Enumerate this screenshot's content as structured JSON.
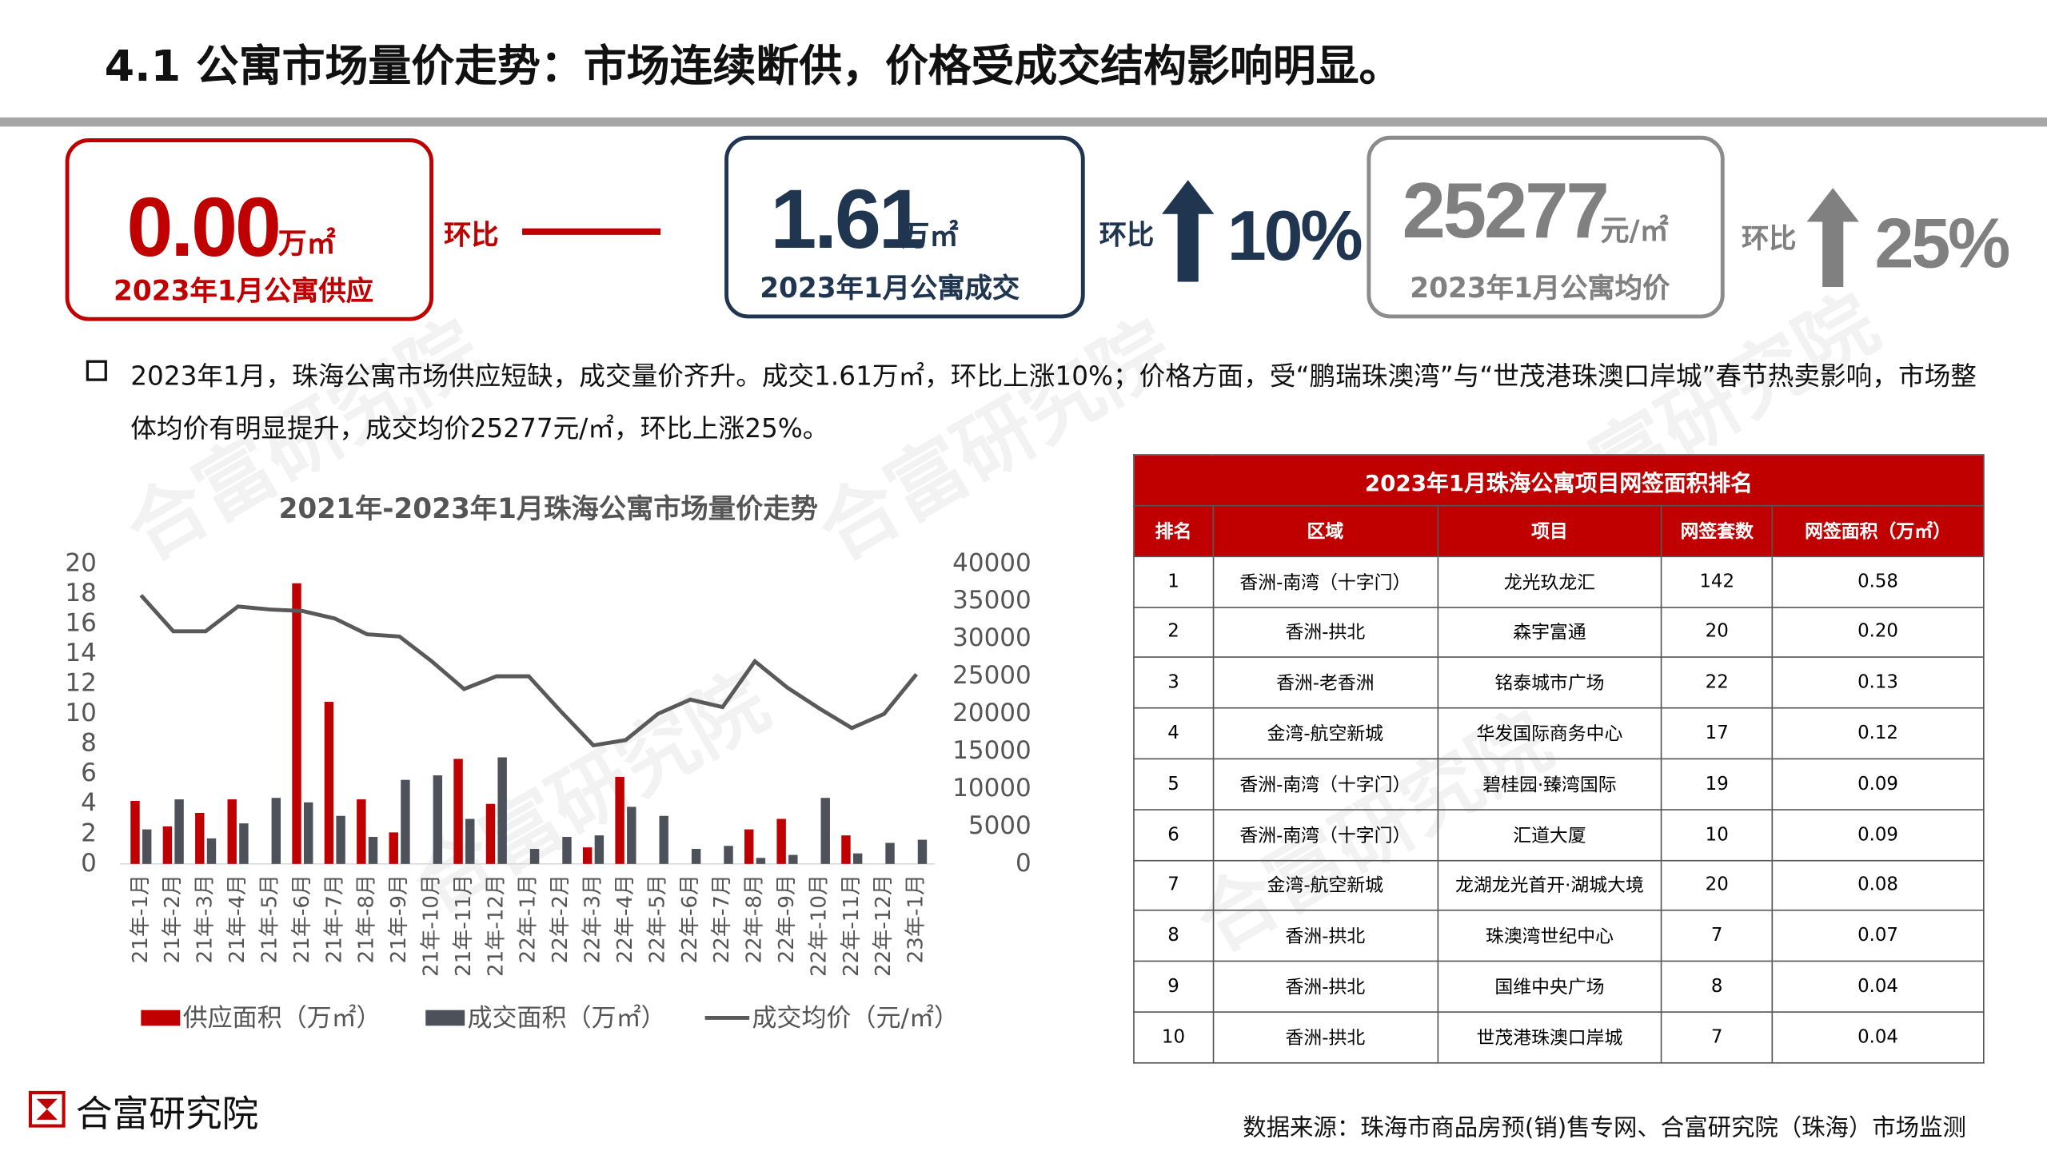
{
  "header": {
    "title": "4.1 公寓市场量价走势：市场连续断供，价格受成交结构影响明显。"
  },
  "kpis": [
    {
      "value": "0.00",
      "unit": "万㎡",
      "label": "2023年1月公寓供应",
      "change_label": "环比"
    },
    {
      "value": "1.61",
      "unit": "万㎡",
      "label": "2023年1月公寓成交",
      "change_label": "环比",
      "change": "10%"
    },
    {
      "value": "25277",
      "unit": "元/㎡",
      "label": "2023年1月公寓均价",
      "change_label": "环比",
      "change": "25%"
    }
  ],
  "summary": "2023年1月，珠海公寓市场供应短缺，成交量价齐升。成交1.61万㎡，环比上涨10%；价格方面，受“鹏瑞珠澳湾”与“世茂港珠澳口岸城”春节热卖影响，市场整体均价有明显提升，成交均价25277元/㎡，环比上涨25%。",
  "watermark": "合富研究院",
  "chart_data": {
    "type": "bar_line",
    "title": "2021年-2023年1月珠海公寓市场量价走势",
    "categories": [
      "21年-1月",
      "21年-2月",
      "21年-3月",
      "21年-4月",
      "21年-5月",
      "21年-6月",
      "21年-7月",
      "21年-8月",
      "21年-9月",
      "21年-10月",
      "21年-11月",
      "21年-12月",
      "22年-1月",
      "22年-2月",
      "22年-3月",
      "22年-4月",
      "22年-5月",
      "22年-6月",
      "22年-7月",
      "22年-8月",
      "22年-9月",
      "22年-10月",
      "22年-11月",
      "22年-12月",
      "23年-1月"
    ],
    "series": [
      {
        "name": "供应面积（万㎡）",
        "kind": "bar",
        "color": "#c00000",
        "values": [
          4.2,
          2.5,
          3.4,
          4.3,
          0,
          18.7,
          10.8,
          4.3,
          2.1,
          0,
          7.0,
          4.0,
          0,
          0,
          1.1,
          5.8,
          0,
          0,
          0,
          2.3,
          3.0,
          0,
          1.9,
          0,
          0
        ]
      },
      {
        "name": "成交面积（万㎡）",
        "kind": "bar",
        "color": "#4d5159",
        "values": [
          2.3,
          4.3,
          1.7,
          2.7,
          4.4,
          4.1,
          3.2,
          1.8,
          5.6,
          5.9,
          3.0,
          7.1,
          1.0,
          1.8,
          1.9,
          3.8,
          3.2,
          1.0,
          1.2,
          0.4,
          0.6,
          4.4,
          0.7,
          1.4,
          1.61
        ]
      },
      {
        "name": "成交均价（元/㎡）",
        "kind": "line",
        "axis": "y2",
        "color": "#595959",
        "values": [
          35800,
          31000,
          31000,
          34300,
          33900,
          33700,
          32700,
          30600,
          30300,
          27000,
          23300,
          25000,
          25000,
          20300,
          15800,
          16500,
          20000,
          21900,
          20900,
          27000,
          23500,
          20700,
          18100,
          20000,
          25277
        ]
      }
    ],
    "ylim": [
      0,
      20
    ],
    "yticks": [
      0,
      2,
      4,
      6,
      8,
      10,
      12,
      14,
      16,
      18,
      20
    ],
    "y2lim": [
      0,
      40000
    ],
    "y2ticks": [
      0,
      5000,
      10000,
      15000,
      20000,
      25000,
      30000,
      35000,
      40000
    ],
    "grid": false
  },
  "table": {
    "title": "2023年1月珠海公寓项目网签面积排名",
    "headers": [
      "排名",
      "区域",
      "项目",
      "网签套数",
      "网签面积（万㎡）"
    ],
    "rows": [
      [
        "1",
        "香洲-南湾（十字门）",
        "龙光玖龙汇",
        "142",
        "0.58"
      ],
      [
        "2",
        "香洲-拱北",
        "森宇富通",
        "20",
        "0.20"
      ],
      [
        "3",
        "香洲-老香洲",
        "铭泰城市广场",
        "22",
        "0.13"
      ],
      [
        "4",
        "金湾-航空新城",
        "华发国际商务中心",
        "17",
        "0.12"
      ],
      [
        "5",
        "香洲-南湾（十字门）",
        "碧桂园·臻湾国际",
        "19",
        "0.09"
      ],
      [
        "6",
        "香洲-南湾（十字门）",
        "汇道大厦",
        "10",
        "0.09"
      ],
      [
        "7",
        "金湾-航空新城",
        "龙湖龙光首开·湖城大境",
        "20",
        "0.08"
      ],
      [
        "8",
        "香洲-拱北",
        "珠澳湾世纪中心",
        "7",
        "0.07"
      ],
      [
        "9",
        "香洲-拱北",
        "国维中央广场",
        "8",
        "0.04"
      ],
      [
        "10",
        "香洲-拱北",
        "世茂港珠澳口岸城",
        "7",
        "0.04"
      ]
    ]
  },
  "footer": {
    "logo": "合富研究院",
    "source": "数据来源：珠海市商品房预(销)售专网、合富研究院（珠海）市场监测"
  }
}
